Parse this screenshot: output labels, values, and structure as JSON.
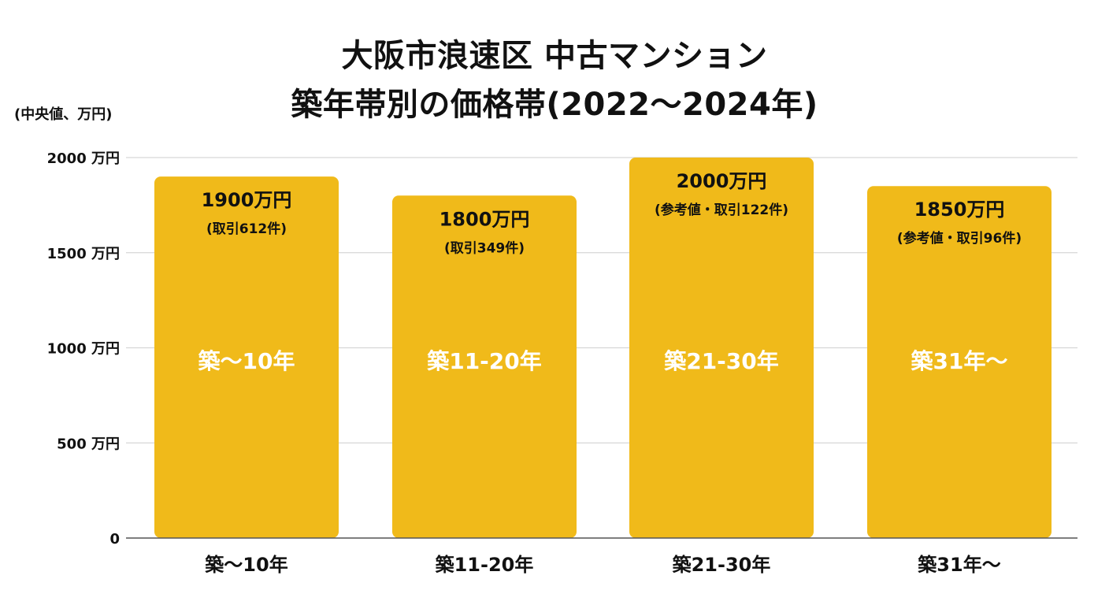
{
  "chart_data": {
    "type": "bar",
    "title_lines": [
      "大阪市浪速区 中古マンション",
      "築年帯別の価格帯(2022〜2024年)"
    ],
    "ylabel": "(中央値、万円)",
    "xlabel": "",
    "categories": [
      "築〜10年",
      "築11-20年",
      "築21-30年",
      "築31年〜"
    ],
    "values": [
      1900,
      1800,
      2000,
      1850
    ],
    "value_labels": [
      "1900万円",
      "1800万円",
      "2000万円",
      "1850万円"
    ],
    "notes": [
      "(取引612件)",
      "(取引349件)",
      "(参考値・取引122件)",
      "(参考値・取引96件)"
    ],
    "in_bar_labels": [
      "築〜10年",
      "築11-20年",
      "築21-30年",
      "築31年〜"
    ],
    "ylim": [
      0,
      2000
    ],
    "yticks": [
      0,
      500,
      1000,
      1500,
      2000
    ],
    "ytick_labels": [
      "0",
      "500 万円",
      "1000 万円",
      "1500 万円",
      "2000 万円"
    ],
    "grid": true,
    "legend": "none",
    "bar_color": "#F0BA1A",
    "grid_color": "#D6D6D6"
  }
}
